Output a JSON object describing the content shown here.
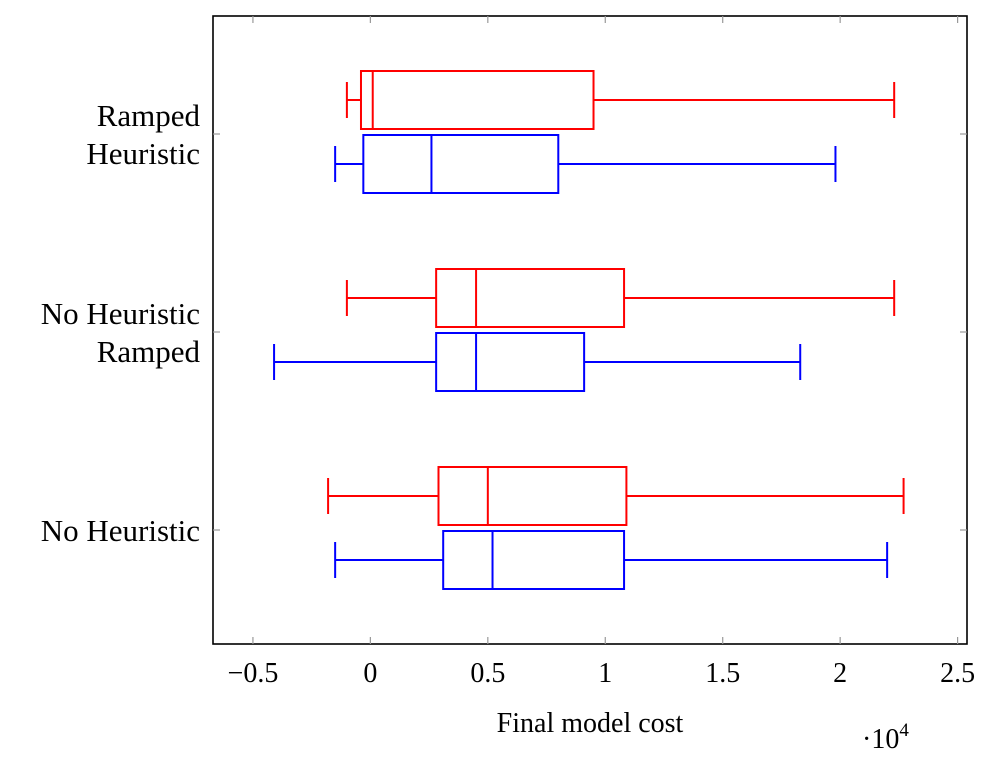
{
  "chart_data": {
    "type": "boxplot",
    "orientation": "horizontal",
    "xlabel": "Final model cost",
    "x_exponent_label": "·10",
    "x_exponent_power": "4",
    "x_scale": 10000,
    "xlim": [
      -0.67,
      2.54
    ],
    "x_ticks": [
      -0.5,
      0,
      0.5,
      1,
      1.5,
      2,
      2.5
    ],
    "x_tick_labels": [
      "−0.5",
      "0",
      "0.5",
      "1",
      "1.5",
      "2",
      "2.5"
    ],
    "grid": false,
    "legend": "none",
    "colors": {
      "red": "#ff0000",
      "blue": "#0000ff",
      "axis": "#000000",
      "tick": "#999999"
    },
    "categories": [
      {
        "lines": [
          "No Heuristic"
        ]
      },
      {
        "lines": [
          "No Heuristic",
          "Ramped"
        ]
      },
      {
        "lines": [
          "Ramped",
          "Heuristic"
        ]
      }
    ],
    "groups": [
      {
        "category_index": 0,
        "boxes": [
          {
            "color": "red",
            "whisker_low": -0.18,
            "q1": 0.29,
            "median": 0.5,
            "q3": 1.09,
            "whisker_high": 2.27
          },
          {
            "color": "blue",
            "whisker_low": -0.15,
            "q1": 0.31,
            "median": 0.52,
            "q3": 1.08,
            "whisker_high": 2.2
          }
        ]
      },
      {
        "category_index": 1,
        "boxes": [
          {
            "color": "red",
            "whisker_low": -0.1,
            "q1": 0.28,
            "median": 0.45,
            "q3": 1.08,
            "whisker_high": 2.23
          },
          {
            "color": "blue",
            "whisker_low": -0.41,
            "q1": 0.28,
            "median": 0.45,
            "q3": 0.91,
            "whisker_high": 1.83
          }
        ]
      },
      {
        "category_index": 2,
        "boxes": [
          {
            "color": "red",
            "whisker_low": -0.1,
            "q1": -0.04,
            "median": 0.01,
            "q3": 0.95,
            "whisker_high": 2.23
          },
          {
            "color": "blue",
            "whisker_low": -0.15,
            "q1": -0.03,
            "median": 0.26,
            "q3": 0.8,
            "whisker_high": 1.98
          }
        ]
      }
    ]
  }
}
